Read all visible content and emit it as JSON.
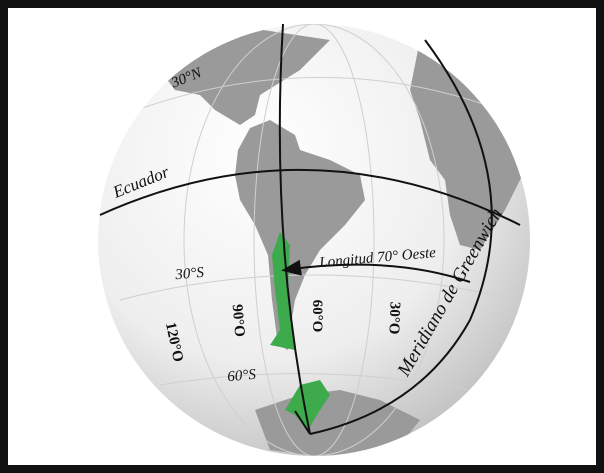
{
  "map": {
    "labels": {
      "north_30": "30°N",
      "equator": "Ecuador",
      "longitude_arrow": "Longitud 70° Oeste",
      "south_30": "30°S",
      "south_60": "60°S",
      "west_120": "120°O",
      "west_90": "90°O",
      "west_60": "60°O",
      "west_30": "30°O",
      "greenwich": "Meridiano de Greenwich"
    }
  }
}
